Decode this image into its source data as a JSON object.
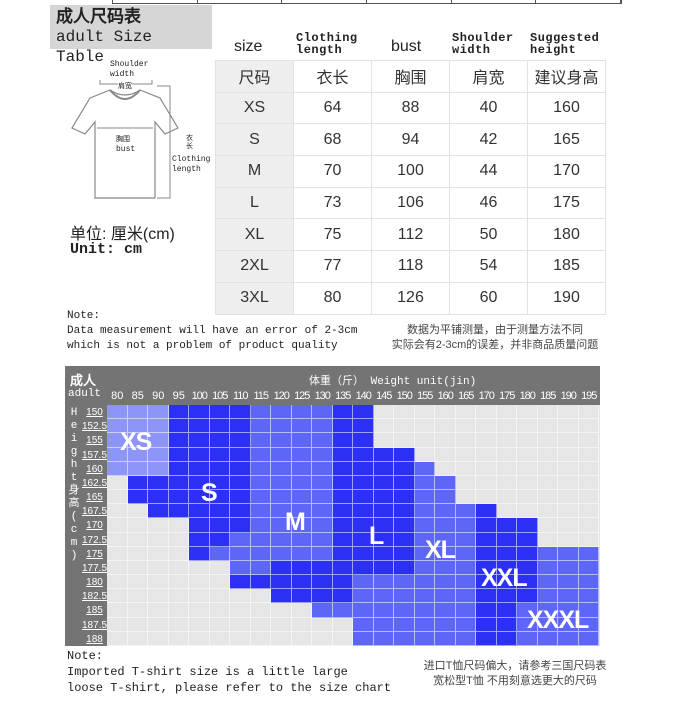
{
  "title": {
    "cn": "成人尺码表",
    "en": "adult Size Table"
  },
  "column_labels_en": [
    "size",
    "Clothing length",
    "bust",
    "Shoulder width",
    "Suggested height"
  ],
  "size_table": {
    "headers": [
      "尺码",
      "衣长",
      "胸围",
      "肩宽",
      "建议身高"
    ],
    "rows": [
      [
        "XS",
        "64",
        "88",
        "40",
        "160"
      ],
      [
        "S",
        "68",
        "94",
        "42",
        "165"
      ],
      [
        "M",
        "70",
        "100",
        "44",
        "170"
      ],
      [
        "L",
        "73",
        "106",
        "46",
        "175"
      ],
      [
        "XL",
        "75",
        "112",
        "50",
        "180"
      ],
      [
        "2XL",
        "77",
        "118",
        "54",
        "185"
      ],
      [
        "3XL",
        "80",
        "126",
        "60",
        "190"
      ]
    ]
  },
  "diagram": {
    "shoulder_en": "Shoulder",
    "shoulder_en2": "width",
    "shoulder_cn": "肩宽",
    "bust_cn": "胸围",
    "bust_en": "bust",
    "length_cn1": "衣",
    "length_cn2": "长",
    "length_en1": "Clothing",
    "length_en2": "length"
  },
  "unit": {
    "cn": "单位: 厘米(cm)",
    "en": "Unit: cm"
  },
  "note1": {
    "label": "Note:",
    "line1": "Data measurement will have an error of 2-3cm",
    "line2": "which is not a problem of product quality",
    "cn1": "数据为平铺测量，由于测量方法不同",
    "cn2": "实际会有2-3cm的误差，并非商品质量问题"
  },
  "weight_chart": {
    "corner_cn": "成人",
    "corner_en": "adult",
    "title": "体重（斤） Weight unit(jin)",
    "side_label": [
      "H",
      "e",
      "i",
      "g",
      "h",
      "t",
      "身",
      "高",
      "(",
      "c",
      "m",
      ")"
    ],
    "weights": [
      "80",
      "85",
      "90",
      "95",
      "100",
      "105",
      "110",
      "115",
      "120",
      "125",
      "130",
      "135",
      "140",
      "145",
      "150",
      "155",
      "160",
      "165",
      "170",
      "175",
      "180",
      "185",
      "190",
      "195"
    ],
    "heights": [
      "150",
      "152.5",
      "155",
      "157.5",
      "160",
      "162.5",
      "165",
      "167.5",
      "170",
      "172.5",
      "175",
      "177.5",
      "180",
      "182.5",
      "185",
      "187.5",
      "188"
    ],
    "colors": {
      "X": "#8e95f8",
      "D": "#2b30f4",
      "M": "#5d66f6",
      "G": "#e6e6e6"
    },
    "cells": [
      "XXXDDDDMMMMDDGGGGGGGGGGG",
      "XXXDDDDMMMMDDGGGGGGGGGGG",
      "XXXDDDDMMMMDDGGGGGGGGGGG",
      "XXXDDDDMMMMDDDDGGGGGGGGG",
      "XXXDDDDMMMMDDDDMGGGGGGGG",
      "GDDDDDDMMMMDDDDMMGGGGGGG",
      "GDDDDDDMMMMDDDDMMGGGGGGG",
      "GGDDDDDMMMMDDDDMMMDGGGGG",
      "GGGGDDDMMMMDDDDMMMDDDGGG",
      "GGGGDDMMMMMDDDDMMMDDDGGG",
      "GGGGDMMMMMMDDDDMMMDDDMMM",
      "GGGGGGMMDDDDDDDMMMDDDMMM",
      "GGGGGGDDDDDDMMMMMMDDDMMM",
      "GGGGGGGGDDDDMMMMMMDDDMMM",
      "GGGGGGGGGGMMMMMMMMDDMMMM",
      "GGGGGGGGGGGGMMMMMMDDMMMM",
      "GGGGGGGGGGGGMMMMMMDDMMMM"
    ],
    "size_labels": [
      "XS",
      "S",
      "M",
      "L",
      "XL",
      "XXL",
      "XXXL"
    ]
  },
  "note2": {
    "label": "Note:",
    "line1": "Imported T-shirt size is a little large",
    "line2": "loose T-shirt, please refer to the size chart",
    "cn1": "进口T恤尺码偏大，请参考三国尺码表",
    "cn2": "宽松型T恤 不用刻意选更大的尺码"
  }
}
